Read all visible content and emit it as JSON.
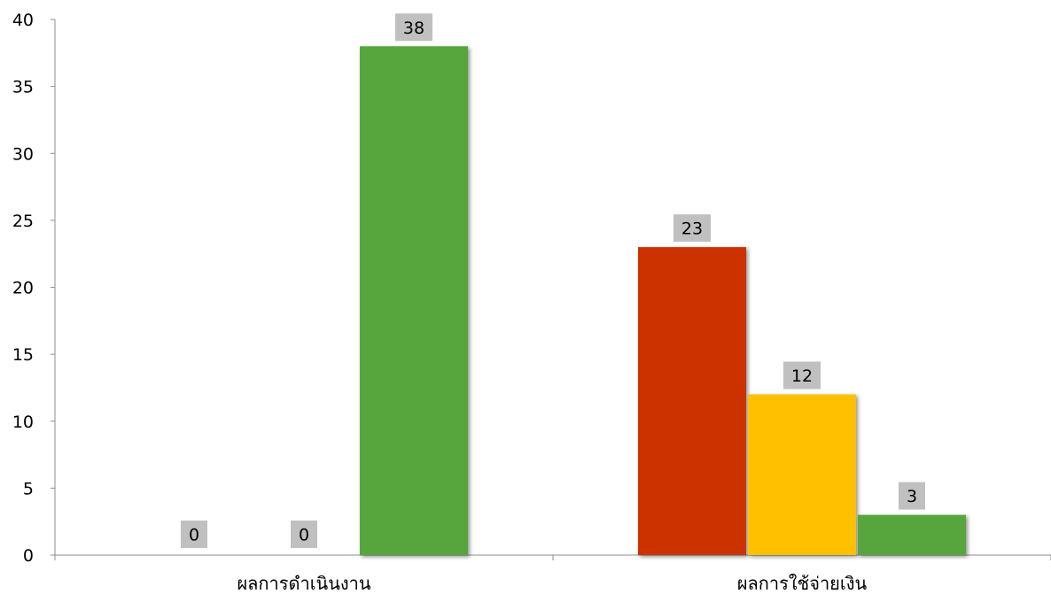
{
  "chart_data": {
    "type": "bar",
    "categories": [
      "ผลการดำเนินงาน",
      "ผลการใช้จ่ายเงิน"
    ],
    "series": [
      {
        "values": [
          0,
          23
        ],
        "color": "#cc3300"
      },
      {
        "values": [
          0,
          12
        ],
        "color": "#ffc000"
      },
      {
        "values": [
          38,
          3
        ],
        "color": "#56a63c"
      }
    ],
    "ylim": [
      0,
      40
    ],
    "yticks": [
      0,
      5,
      10,
      15,
      20,
      25,
      30,
      35,
      40
    ],
    "grid": false,
    "legend": "none",
    "data_labels": true,
    "data_label_bg": "#c0c0c0"
  }
}
